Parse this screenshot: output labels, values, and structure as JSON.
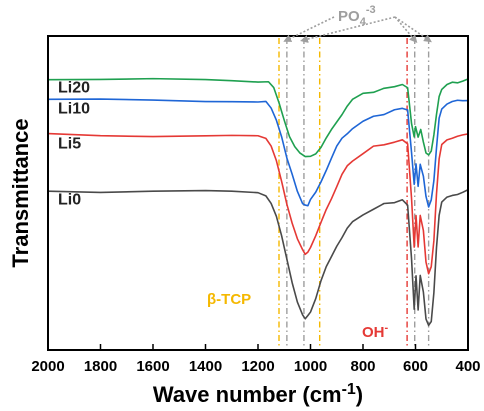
{
  "chart_data": {
    "type": "line",
    "title": "",
    "xlabel": "Wave number (cm",
    "xlabel_sup": "-1",
    "xlabel_close": ")",
    "ylabel": "Transmittance",
    "xlim": [
      2000,
      400
    ],
    "x_reversed": true,
    "xticks": [
      2000,
      1800,
      1600,
      1400,
      1200,
      1000,
      800,
      600,
      400
    ],
    "yticks_shown": false,
    "grid": false,
    "series": [
      {
        "name": "Li20",
        "color": "#1fa050",
        "points": [
          [
            2000,
            0.905
          ],
          [
            1800,
            0.902
          ],
          [
            1600,
            0.901
          ],
          [
            1400,
            0.9
          ],
          [
            1300,
            0.899
          ],
          [
            1200,
            0.896
          ],
          [
            1160,
            0.89
          ],
          [
            1140,
            0.87
          ],
          [
            1120,
            0.82
          ],
          [
            1100,
            0.76
          ],
          [
            1080,
            0.7
          ],
          [
            1060,
            0.66
          ],
          [
            1040,
            0.635
          ],
          [
            1020,
            0.625
          ],
          [
            1000,
            0.63
          ],
          [
            980,
            0.64
          ],
          [
            960,
            0.66
          ],
          [
            940,
            0.69
          ],
          [
            920,
            0.72
          ],
          [
            900,
            0.75
          ],
          [
            880,
            0.78
          ],
          [
            860,
            0.81
          ],
          [
            840,
            0.83
          ],
          [
            800,
            0.85
          ],
          [
            760,
            0.86
          ],
          [
            720,
            0.868
          ],
          [
            680,
            0.875
          ],
          [
            650,
            0.88
          ],
          [
            630,
            0.87
          ],
          [
            615,
            0.74
          ],
          [
            605,
            0.7
          ],
          [
            600,
            0.73
          ],
          [
            590,
            0.7
          ],
          [
            580,
            0.72
          ],
          [
            570,
            0.68
          ],
          [
            560,
            0.64
          ],
          [
            550,
            0.63
          ],
          [
            540,
            0.65
          ],
          [
            530,
            0.7
          ],
          [
            520,
            0.78
          ],
          [
            510,
            0.84
          ],
          [
            500,
            0.865
          ],
          [
            480,
            0.88
          ],
          [
            460,
            0.89
          ],
          [
            440,
            0.892
          ],
          [
            420,
            0.9
          ],
          [
            400,
            0.905
          ]
        ]
      },
      {
        "name": "Li10",
        "color": "#1f66d6",
        "points": [
          [
            2000,
            0.83
          ],
          [
            1800,
            0.828
          ],
          [
            1600,
            0.828
          ],
          [
            1400,
            0.827
          ],
          [
            1300,
            0.826
          ],
          [
            1200,
            0.823
          ],
          [
            1170,
            0.82
          ],
          [
            1150,
            0.8
          ],
          [
            1130,
            0.76
          ],
          [
            1110,
            0.7
          ],
          [
            1090,
            0.62
          ],
          [
            1070,
            0.56
          ],
          [
            1050,
            0.5
          ],
          [
            1030,
            0.46
          ],
          [
            1020,
            0.45
          ],
          [
            1010,
            0.455
          ],
          [
            1000,
            0.47
          ],
          [
            980,
            0.5
          ],
          [
            960,
            0.54
          ],
          [
            940,
            0.58
          ],
          [
            920,
            0.62
          ],
          [
            900,
            0.66
          ],
          [
            880,
            0.69
          ],
          [
            860,
            0.71
          ],
          [
            840,
            0.73
          ],
          [
            800,
            0.75
          ],
          [
            760,
            0.77
          ],
          [
            720,
            0.78
          ],
          [
            680,
            0.79
          ],
          [
            650,
            0.8
          ],
          [
            630,
            0.79
          ],
          [
            615,
            0.64
          ],
          [
            605,
            0.53
          ],
          [
            598,
            0.6
          ],
          [
            590,
            0.52
          ],
          [
            582,
            0.6
          ],
          [
            570,
            0.56
          ],
          [
            560,
            0.48
          ],
          [
            550,
            0.45
          ],
          [
            540,
            0.47
          ],
          [
            530,
            0.54
          ],
          [
            520,
            0.66
          ],
          [
            510,
            0.76
          ],
          [
            500,
            0.8
          ],
          [
            480,
            0.815
          ],
          [
            460,
            0.82
          ],
          [
            440,
            0.824
          ],
          [
            420,
            0.826
          ],
          [
            400,
            0.83
          ]
        ]
      },
      {
        "name": "Li5",
        "color": "#e53935",
        "points": [
          [
            2000,
            0.705
          ],
          [
            1800,
            0.702
          ],
          [
            1600,
            0.702
          ],
          [
            1400,
            0.701
          ],
          [
            1300,
            0.7
          ],
          [
            1200,
            0.697
          ],
          [
            1170,
            0.69
          ],
          [
            1150,
            0.66
          ],
          [
            1130,
            0.61
          ],
          [
            1110,
            0.54
          ],
          [
            1090,
            0.46
          ],
          [
            1070,
            0.39
          ],
          [
            1050,
            0.33
          ],
          [
            1030,
            0.29
          ],
          [
            1020,
            0.28
          ],
          [
            1010,
            0.285
          ],
          [
            1000,
            0.3
          ],
          [
            980,
            0.34
          ],
          [
            960,
            0.39
          ],
          [
            940,
            0.44
          ],
          [
            920,
            0.48
          ],
          [
            900,
            0.52
          ],
          [
            880,
            0.56
          ],
          [
            860,
            0.59
          ],
          [
            840,
            0.61
          ],
          [
            800,
            0.64
          ],
          [
            760,
            0.66
          ],
          [
            720,
            0.67
          ],
          [
            680,
            0.68
          ],
          [
            650,
            0.69
          ],
          [
            630,
            0.675
          ],
          [
            615,
            0.48
          ],
          [
            605,
            0.3
          ],
          [
            598,
            0.42
          ],
          [
            590,
            0.3
          ],
          [
            582,
            0.42
          ],
          [
            570,
            0.36
          ],
          [
            560,
            0.25
          ],
          [
            550,
            0.21
          ],
          [
            540,
            0.23
          ],
          [
            530,
            0.33
          ],
          [
            520,
            0.49
          ],
          [
            510,
            0.62
          ],
          [
            500,
            0.67
          ],
          [
            480,
            0.69
          ],
          [
            460,
            0.695
          ],
          [
            440,
            0.698
          ],
          [
            420,
            0.7
          ],
          [
            400,
            0.705
          ]
        ]
      },
      {
        "name": "Li0",
        "color": "#4a4a4a",
        "points": [
          [
            2000,
            0.505
          ],
          [
            1800,
            0.502
          ],
          [
            1600,
            0.502
          ],
          [
            1400,
            0.501
          ],
          [
            1300,
            0.5
          ],
          [
            1200,
            0.497
          ],
          [
            1170,
            0.49
          ],
          [
            1150,
            0.46
          ],
          [
            1130,
            0.41
          ],
          [
            1110,
            0.34
          ],
          [
            1090,
            0.26
          ],
          [
            1070,
            0.18
          ],
          [
            1050,
            0.11
          ],
          [
            1030,
            0.06
          ],
          [
            1020,
            0.05
          ],
          [
            1010,
            0.055
          ],
          [
            1000,
            0.075
          ],
          [
            980,
            0.12
          ],
          [
            960,
            0.18
          ],
          [
            940,
            0.23
          ],
          [
            920,
            0.27
          ],
          [
            900,
            0.31
          ],
          [
            880,
            0.34
          ],
          [
            860,
            0.37
          ],
          [
            840,
            0.39
          ],
          [
            800,
            0.42
          ],
          [
            760,
            0.44
          ],
          [
            720,
            0.455
          ],
          [
            680,
            0.465
          ],
          [
            650,
            0.47
          ],
          [
            630,
            0.455
          ],
          [
            615,
            0.26
          ],
          [
            605,
            0.08
          ],
          [
            598,
            0.2
          ],
          [
            590,
            0.08
          ],
          [
            582,
            0.2
          ],
          [
            570,
            0.14
          ],
          [
            560,
            0.05
          ],
          [
            550,
            0.02
          ],
          [
            540,
            0.04
          ],
          [
            530,
            0.14
          ],
          [
            520,
            0.3
          ],
          [
            510,
            0.42
          ],
          [
            500,
            0.46
          ],
          [
            480,
            0.48
          ],
          [
            460,
            0.49
          ],
          [
            440,
            0.495
          ],
          [
            420,
            0.5
          ],
          [
            400,
            0.505
          ]
        ]
      }
    ],
    "reference_lines": [
      {
        "x": 1120,
        "color": "#f5b800",
        "dash": "dashdot"
      },
      {
        "x": 1090,
        "color": "#9e9e9e",
        "dash": "dashdot"
      },
      {
        "x": 1025,
        "color": "#9e9e9e",
        "dash": "dashdot"
      },
      {
        "x": 965,
        "color": "#f5b800",
        "dash": "dashdot"
      },
      {
        "x": 632,
        "color": "#e53935",
        "dash": "dashdot"
      },
      {
        "x": 603,
        "color": "#9e9e9e",
        "dash": "dashdot"
      },
      {
        "x": 550,
        "color": "#9e9e9e",
        "dash": "dashdot"
      }
    ],
    "annotations": [
      {
        "text": "β-TCP",
        "color": "#f5b800"
      },
      {
        "text": "OH",
        "sup": "-",
        "color": "#e53935"
      },
      {
        "text": "PO",
        "sub": "4",
        "sup": "-3",
        "color": "#9e9e9e",
        "arrows_to_x": [
          1090,
          1025,
          603,
          550
        ]
      }
    ]
  }
}
